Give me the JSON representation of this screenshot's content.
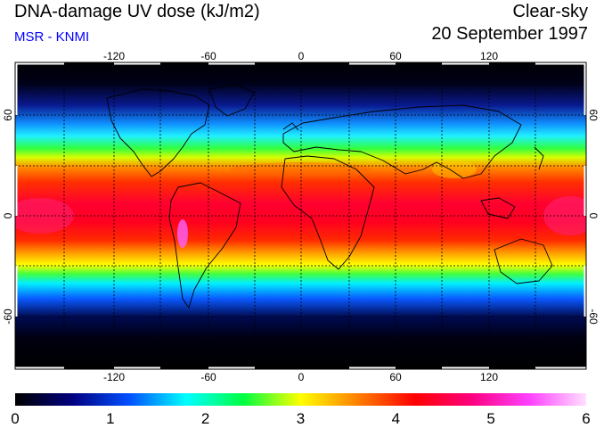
{
  "header": {
    "title": "DNA-damage UV dose (kJ/m2)",
    "source": "MSR - KNMI",
    "condition": "Clear-sky",
    "date": "20 September 1997"
  },
  "map": {
    "projection": "equirectangular",
    "lon_range": [
      -180,
      180
    ],
    "lat_range": [
      -90,
      90
    ],
    "grid": true,
    "lon_ticks": [
      -120,
      -60,
      0,
      60,
      120
    ],
    "lon_tick_labels": [
      "-120",
      "-60",
      "0",
      "60",
      "120"
    ],
    "lat_ticks": [
      60,
      0,
      -60
    ],
    "lat_tick_labels": [
      "60",
      "0",
      "-60"
    ]
  },
  "colorbar": {
    "min": 0,
    "max": 6,
    "ticks": [
      0,
      1,
      2,
      3,
      4,
      5,
      6
    ],
    "tick_labels": [
      "0",
      "1",
      "2",
      "3",
      "4",
      "5",
      "6"
    ],
    "colors": [
      "#000000",
      "#000080",
      "#0050ff",
      "#00ffff",
      "#00ff40",
      "#ffff00",
      "#ff8000",
      "#ff0000",
      "#ff0080",
      "#ff40ff",
      "#ffe0ff"
    ]
  },
  "colors": {
    "title": "#000000",
    "source": "#0000ff"
  }
}
